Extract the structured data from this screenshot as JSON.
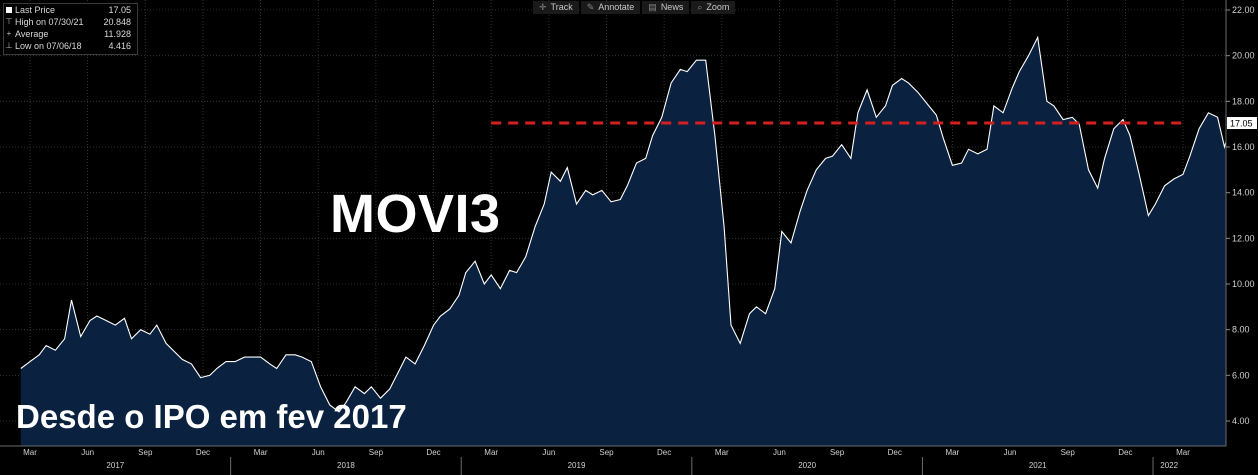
{
  "legend": {
    "items": [
      {
        "label": "Last Price",
        "value": "17.05"
      },
      {
        "label": "High on 07/30/21",
        "value": "20.848"
      },
      {
        "label": "Average",
        "value": "11.928"
      },
      {
        "label": "Low on 07/06/18",
        "value": "4.416"
      }
    ]
  },
  "toolbar": {
    "track": "Track",
    "annotate": "Annotate",
    "news": "News",
    "zoom": "Zoom"
  },
  "overlay": {
    "ticker": "MOVI3",
    "caption": "Desde o IPO em fev 2017"
  },
  "colors": {
    "area_fill": "#0a2240",
    "line": "#ffffff",
    "reference_line": "#d42020",
    "grid": "#3c3c3c",
    "background": "#000000"
  },
  "chart_data": {
    "type": "area",
    "ylim": [
      3.0,
      22.5
    ],
    "y_ticks": [
      "4.00",
      "6.00",
      "8.00",
      "10.00",
      "12.00",
      "14.00",
      "16.00",
      "18.00",
      "20.00",
      "22.00"
    ],
    "last_price_label": "17.05",
    "reference_line": {
      "value": 17.05,
      "style": "dashed",
      "from_x": 2019.13,
      "to_x": 2022.14
    },
    "x_months": [
      {
        "label": "Mar",
        "x": 2017.13
      },
      {
        "label": "Jun",
        "x": 2017.38
      },
      {
        "label": "Sep",
        "x": 2017.63
      },
      {
        "label": "Dec",
        "x": 2017.88
      },
      {
        "label": "Mar",
        "x": 2018.13
      },
      {
        "label": "Jun",
        "x": 2018.38
      },
      {
        "label": "Sep",
        "x": 2018.63
      },
      {
        "label": "Dec",
        "x": 2018.88
      },
      {
        "label": "Mar",
        "x": 2019.13
      },
      {
        "label": "Jun",
        "x": 2019.38
      },
      {
        "label": "Sep",
        "x": 2019.63
      },
      {
        "label": "Dec",
        "x": 2019.88
      },
      {
        "label": "Mar",
        "x": 2020.13
      },
      {
        "label": "Jun",
        "x": 2020.38
      },
      {
        "label": "Sep",
        "x": 2020.63
      },
      {
        "label": "Dec",
        "x": 2020.88
      },
      {
        "label": "Mar",
        "x": 2021.13
      },
      {
        "label": "Jun",
        "x": 2021.38
      },
      {
        "label": "Sep",
        "x": 2021.63
      },
      {
        "label": "Dec",
        "x": 2021.88
      },
      {
        "label": "Mar",
        "x": 2022.13
      }
    ],
    "x_years": [
      {
        "label": "2017",
        "x": 2017.5
      },
      {
        "label": "2018",
        "x": 2018.5
      },
      {
        "label": "2019",
        "x": 2019.5
      },
      {
        "label": "2020",
        "x": 2020.5
      },
      {
        "label": "2021",
        "x": 2021.5
      },
      {
        "label": "2022",
        "x": 2022.07
      }
    ],
    "year_boundaries": [
      2018.0,
      2019.0,
      2020.0,
      2021.0,
      2022.0
    ],
    "series": [
      {
        "points": [
          [
            2017.09,
            6.3
          ],
          [
            2017.13,
            6.6
          ],
          [
            2017.17,
            6.9
          ],
          [
            2017.2,
            7.3
          ],
          [
            2017.24,
            7.1
          ],
          [
            2017.28,
            7.6
          ],
          [
            2017.31,
            9.3
          ],
          [
            2017.35,
            7.7
          ],
          [
            2017.39,
            8.4
          ],
          [
            2017.42,
            8.6
          ],
          [
            2017.46,
            8.4
          ],
          [
            2017.5,
            8.2
          ],
          [
            2017.54,
            8.5
          ],
          [
            2017.57,
            7.6
          ],
          [
            2017.61,
            8.0
          ],
          [
            2017.65,
            7.8
          ],
          [
            2017.68,
            8.2
          ],
          [
            2017.72,
            7.4
          ],
          [
            2017.76,
            7.0
          ],
          [
            2017.79,
            6.7
          ],
          [
            2017.83,
            6.5
          ],
          [
            2017.87,
            5.9
          ],
          [
            2017.91,
            6.0
          ],
          [
            2017.94,
            6.3
          ],
          [
            2017.98,
            6.6
          ],
          [
            2018.02,
            6.6
          ],
          [
            2018.06,
            6.8
          ],
          [
            2018.09,
            6.8
          ],
          [
            2018.13,
            6.8
          ],
          [
            2018.17,
            6.5
          ],
          [
            2018.2,
            6.3
          ],
          [
            2018.24,
            6.9
          ],
          [
            2018.28,
            6.9
          ],
          [
            2018.31,
            6.8
          ],
          [
            2018.35,
            6.6
          ],
          [
            2018.39,
            5.5
          ],
          [
            2018.43,
            4.7
          ],
          [
            2018.47,
            4.4
          ],
          [
            2018.5,
            4.8
          ],
          [
            2018.54,
            5.5
          ],
          [
            2018.58,
            5.2
          ],
          [
            2018.61,
            5.5
          ],
          [
            2018.65,
            5.0
          ],
          [
            2018.69,
            5.4
          ],
          [
            2018.73,
            6.2
          ],
          [
            2018.76,
            6.8
          ],
          [
            2018.8,
            6.5
          ],
          [
            2018.84,
            7.3
          ],
          [
            2018.88,
            8.2
          ],
          [
            2018.91,
            8.6
          ],
          [
            2018.95,
            8.9
          ],
          [
            2018.99,
            9.5
          ],
          [
            2019.02,
            10.5
          ],
          [
            2019.06,
            11.0
          ],
          [
            2019.1,
            10.0
          ],
          [
            2019.13,
            10.4
          ],
          [
            2019.17,
            9.8
          ],
          [
            2019.21,
            10.6
          ],
          [
            2019.24,
            10.5
          ],
          [
            2019.28,
            11.2
          ],
          [
            2019.32,
            12.5
          ],
          [
            2019.36,
            13.5
          ],
          [
            2019.39,
            14.9
          ],
          [
            2019.43,
            14.5
          ],
          [
            2019.46,
            15.1
          ],
          [
            2019.5,
            13.5
          ],
          [
            2019.54,
            14.1
          ],
          [
            2019.57,
            13.9
          ],
          [
            2019.61,
            14.1
          ],
          [
            2019.65,
            13.6
          ],
          [
            2019.69,
            13.7
          ],
          [
            2019.72,
            14.3
          ],
          [
            2019.76,
            15.3
          ],
          [
            2019.8,
            15.5
          ],
          [
            2019.83,
            16.5
          ],
          [
            2019.87,
            17.3
          ],
          [
            2019.91,
            18.8
          ],
          [
            2019.95,
            19.4
          ],
          [
            2019.98,
            19.3
          ],
          [
            2020.02,
            19.8
          ],
          [
            2020.06,
            19.8
          ],
          [
            2020.1,
            16.5
          ],
          [
            2020.14,
            12.5
          ],
          [
            2020.17,
            8.2
          ],
          [
            2020.21,
            7.4
          ],
          [
            2020.25,
            8.7
          ],
          [
            2020.28,
            9.0
          ],
          [
            2020.32,
            8.7
          ],
          [
            2020.36,
            9.8
          ],
          [
            2020.39,
            12.3
          ],
          [
            2020.43,
            11.8
          ],
          [
            2020.47,
            13.2
          ],
          [
            2020.5,
            14.1
          ],
          [
            2020.54,
            15.0
          ],
          [
            2020.58,
            15.5
          ],
          [
            2020.61,
            15.6
          ],
          [
            2020.65,
            16.1
          ],
          [
            2020.69,
            15.5
          ],
          [
            2020.72,
            17.5
          ],
          [
            2020.76,
            18.5
          ],
          [
            2020.8,
            17.3
          ],
          [
            2020.84,
            17.8
          ],
          [
            2020.87,
            18.7
          ],
          [
            2020.91,
            19.0
          ],
          [
            2020.94,
            18.8
          ],
          [
            2020.98,
            18.4
          ],
          [
            2021.02,
            17.9
          ],
          [
            2021.06,
            17.4
          ],
          [
            2021.09,
            16.4
          ],
          [
            2021.13,
            15.2
          ],
          [
            2021.17,
            15.3
          ],
          [
            2021.2,
            15.9
          ],
          [
            2021.24,
            15.7
          ],
          [
            2021.28,
            15.9
          ],
          [
            2021.31,
            17.8
          ],
          [
            2021.35,
            17.5
          ],
          [
            2021.39,
            18.6
          ],
          [
            2021.42,
            19.3
          ],
          [
            2021.46,
            20.0
          ],
          [
            2021.5,
            20.8
          ],
          [
            2021.54,
            18.0
          ],
          [
            2021.57,
            17.8
          ],
          [
            2021.61,
            17.2
          ],
          [
            2021.65,
            17.3
          ],
          [
            2021.68,
            17.0
          ],
          [
            2021.72,
            15.0
          ],
          [
            2021.76,
            14.2
          ],
          [
            2021.79,
            15.5
          ],
          [
            2021.83,
            16.8
          ],
          [
            2021.87,
            17.2
          ],
          [
            2021.9,
            16.5
          ],
          [
            2021.94,
            14.8
          ],
          [
            2021.98,
            13.0
          ],
          [
            2022.01,
            13.5
          ],
          [
            2022.05,
            14.3
          ],
          [
            2022.09,
            14.6
          ],
          [
            2022.13,
            14.8
          ],
          [
            2022.16,
            15.6
          ],
          [
            2022.2,
            16.8
          ],
          [
            2022.24,
            17.5
          ],
          [
            2022.28,
            17.3
          ],
          [
            2022.31,
            16.0
          ],
          [
            2022.34,
            17.05
          ]
        ]
      }
    ]
  }
}
